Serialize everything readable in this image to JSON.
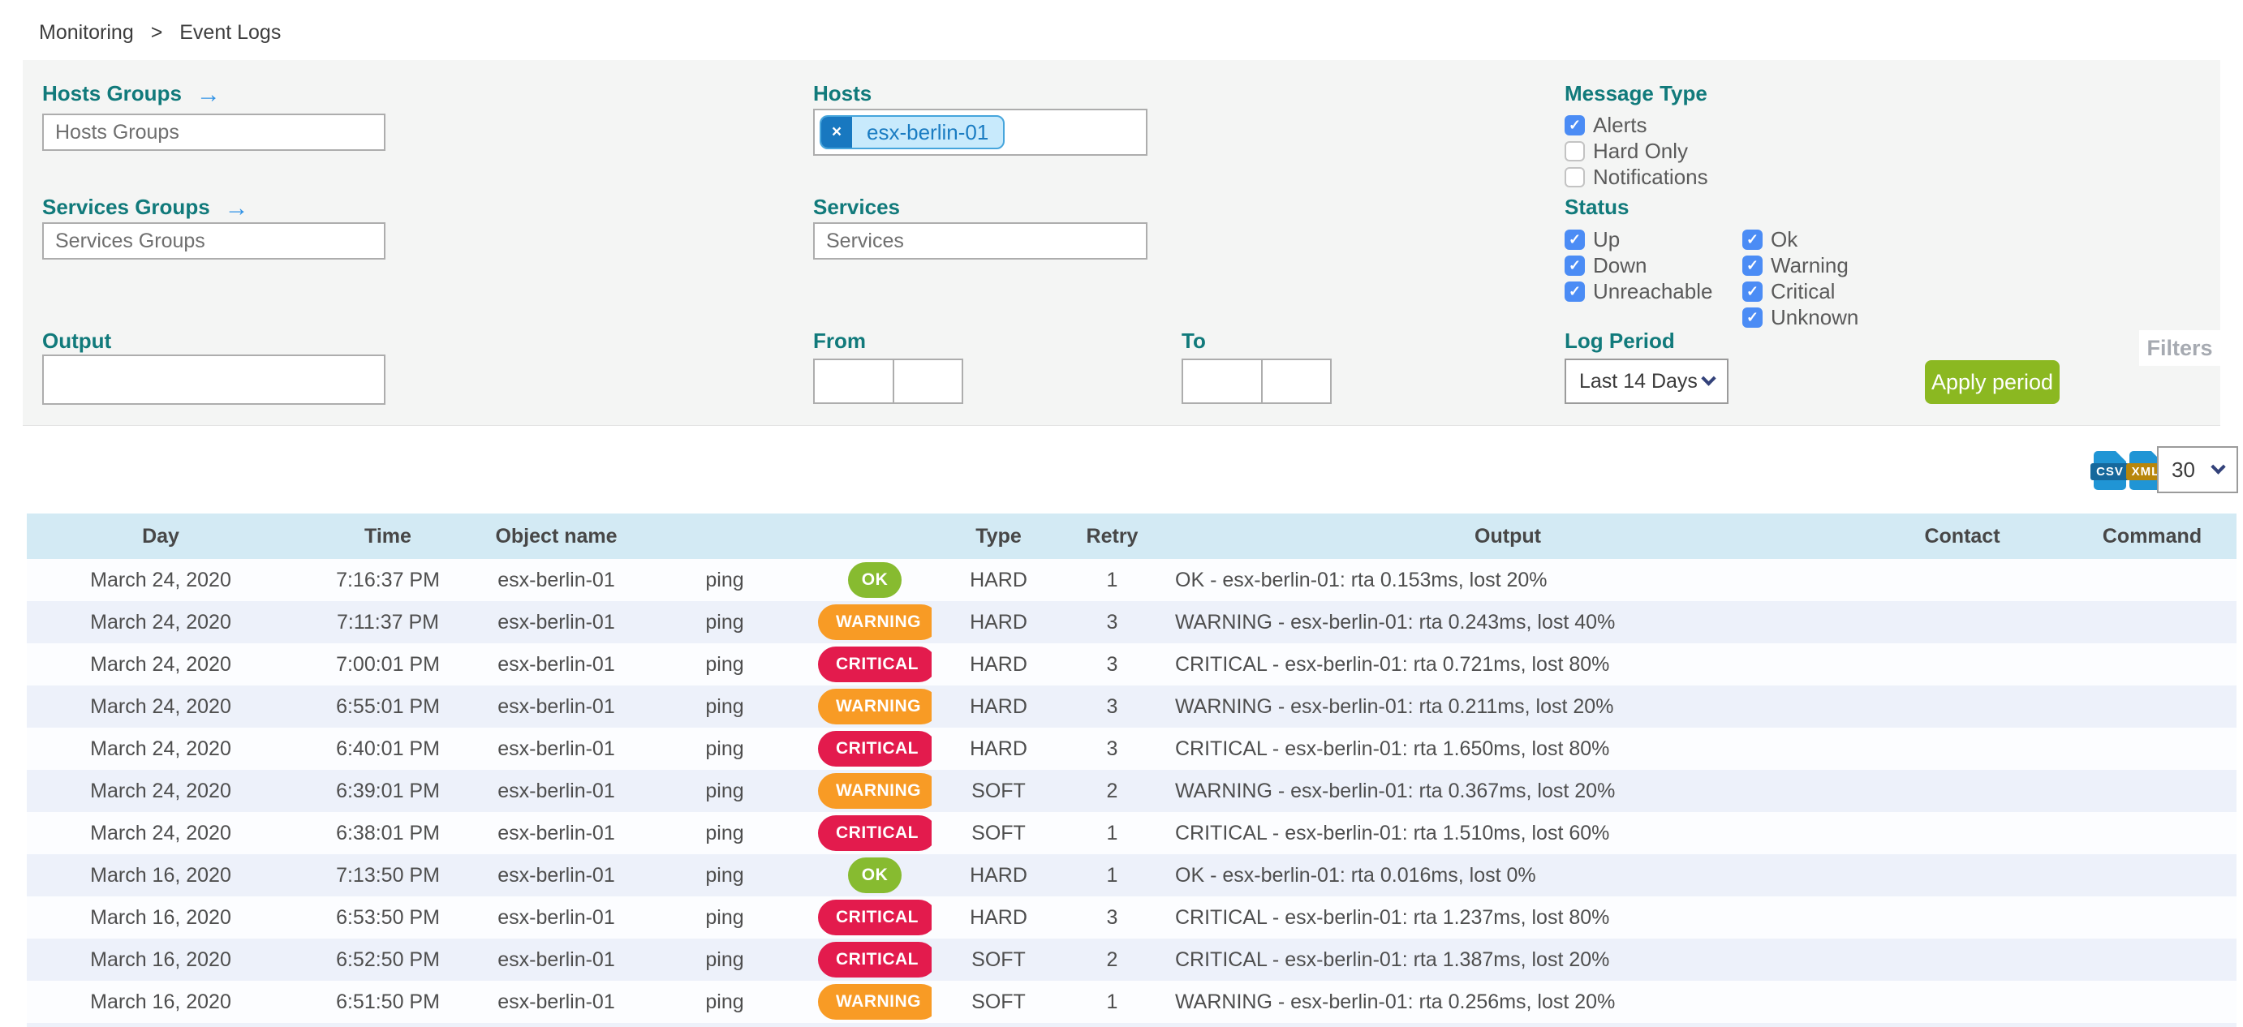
{
  "breadcrumb": {
    "items": [
      "Monitoring",
      "Event Logs"
    ],
    "separator": ">"
  },
  "filters": {
    "hosts_groups": {
      "label": "Hosts Groups",
      "placeholder": "Hosts Groups",
      "arrow_icon": "→"
    },
    "services_groups": {
      "label": "Services Groups",
      "placeholder": "Services Groups",
      "arrow_icon": "→"
    },
    "hosts": {
      "label": "Hosts",
      "chips": [
        "esx-berlin-01"
      ],
      "chip_remove_icon": "×"
    },
    "services": {
      "label": "Services",
      "placeholder": "Services"
    },
    "output": {
      "label": "Output",
      "value": ""
    },
    "from": {
      "label": "From",
      "date_value": "",
      "time_value": ""
    },
    "to": {
      "label": "To",
      "date_value": "",
      "time_value": ""
    },
    "message_type": {
      "label": "Message Type",
      "options": [
        {
          "label": "Alerts",
          "checked": true
        },
        {
          "label": "Hard Only",
          "checked": false
        },
        {
          "label": "Notifications",
          "checked": false
        }
      ]
    },
    "status": {
      "label": "Status",
      "col1": [
        {
          "label": "Up",
          "checked": true
        },
        {
          "label": "Down",
          "checked": true
        },
        {
          "label": "Unreachable",
          "checked": true
        }
      ],
      "col2": [
        {
          "label": "Ok",
          "checked": true
        },
        {
          "label": "Warning",
          "checked": true
        },
        {
          "label": "Critical",
          "checked": true
        },
        {
          "label": "Unknown",
          "checked": true
        }
      ]
    },
    "log_period": {
      "label": "Log Period",
      "selected": "Last 14 Days"
    },
    "apply_button_label": "Apply period",
    "filters_tab_label": "Filters"
  },
  "toolbar": {
    "csv_export_label": "CSV",
    "xml_export_label": "XML",
    "page_size_selected": "30"
  },
  "table": {
    "columns": [
      "Day",
      "Time",
      "Object name",
      "",
      "",
      "Type",
      "Retry",
      "Output",
      "Contact",
      "Command"
    ],
    "rows": [
      {
        "day": "March 24, 2020",
        "time": "7:16:37 PM",
        "object": "esx-berlin-01",
        "service": "ping",
        "status": "OK",
        "type": "HARD",
        "retry": "1",
        "output": "OK - esx-berlin-01: rta 0.153ms, lost 20%",
        "contact": "",
        "command": ""
      },
      {
        "day": "March 24, 2020",
        "time": "7:11:37 PM",
        "object": "esx-berlin-01",
        "service": "ping",
        "status": "WARNING",
        "type": "HARD",
        "retry": "3",
        "output": "WARNING - esx-berlin-01: rta 0.243ms, lost 40%",
        "contact": "",
        "command": ""
      },
      {
        "day": "March 24, 2020",
        "time": "7:00:01 PM",
        "object": "esx-berlin-01",
        "service": "ping",
        "status": "CRITICAL",
        "type": "HARD",
        "retry": "3",
        "output": "CRITICAL - esx-berlin-01: rta 0.721ms, lost 80%",
        "contact": "",
        "command": ""
      },
      {
        "day": "March 24, 2020",
        "time": "6:55:01 PM",
        "object": "esx-berlin-01",
        "service": "ping",
        "status": "WARNING",
        "type": "HARD",
        "retry": "3",
        "output": "WARNING - esx-berlin-01: rta 0.211ms, lost 20%",
        "contact": "",
        "command": ""
      },
      {
        "day": "March 24, 2020",
        "time": "6:40:01 PM",
        "object": "esx-berlin-01",
        "service": "ping",
        "status": "CRITICAL",
        "type": "HARD",
        "retry": "3",
        "output": "CRITICAL - esx-berlin-01: rta 1.650ms, lost 80%",
        "contact": "",
        "command": ""
      },
      {
        "day": "March 24, 2020",
        "time": "6:39:01 PM",
        "object": "esx-berlin-01",
        "service": "ping",
        "status": "WARNING",
        "type": "SOFT",
        "retry": "2",
        "output": "WARNING - esx-berlin-01: rta 0.367ms, lost 20%",
        "contact": "",
        "command": ""
      },
      {
        "day": "March 24, 2020",
        "time": "6:38:01 PM",
        "object": "esx-berlin-01",
        "service": "ping",
        "status": "CRITICAL",
        "type": "SOFT",
        "retry": "1",
        "output": "CRITICAL - esx-berlin-01: rta 1.510ms, lost 60%",
        "contact": "",
        "command": ""
      },
      {
        "day": "March 16, 2020",
        "time": "7:13:50 PM",
        "object": "esx-berlin-01",
        "service": "ping",
        "status": "OK",
        "type": "HARD",
        "retry": "1",
        "output": "OK - esx-berlin-01: rta 0.016ms, lost 0%",
        "contact": "",
        "command": ""
      },
      {
        "day": "March 16, 2020",
        "time": "6:53:50 PM",
        "object": "esx-berlin-01",
        "service": "ping",
        "status": "CRITICAL",
        "type": "HARD",
        "retry": "3",
        "output": "CRITICAL - esx-berlin-01: rta 1.237ms, lost 80%",
        "contact": "",
        "command": ""
      },
      {
        "day": "March 16, 2020",
        "time": "6:52:50 PM",
        "object": "esx-berlin-01",
        "service": "ping",
        "status": "CRITICAL",
        "type": "SOFT",
        "retry": "2",
        "output": "CRITICAL - esx-berlin-01: rta 1.387ms, lost 20%",
        "contact": "",
        "command": ""
      },
      {
        "day": "March 16, 2020",
        "time": "6:51:50 PM",
        "object": "esx-berlin-01",
        "service": "ping",
        "status": "WARNING",
        "type": "SOFT",
        "retry": "1",
        "output": "WARNING - esx-berlin-01: rta 0.256ms, lost 20%",
        "contact": "",
        "command": ""
      }
    ]
  },
  "colors": {
    "label_teal": "#117a7b",
    "arrow_blue": "#3193e6",
    "checkbox_blue": "#4b8cf5",
    "chip_bg": "#c8eafc",
    "chip_border": "#46a5dc",
    "chip_text": "#1a7cc2",
    "chip_remove_bg": "#1878c0",
    "apply_button_green": "#8bb821",
    "table_header_bg": "#d3eaf4",
    "row_alt_bg": "#edf1fa",
    "badge_ok": "#87bb30",
    "badge_warning": "#f89b25",
    "badge_critical": "#e31b4d",
    "panel_bg": "#f4f5f4"
  }
}
